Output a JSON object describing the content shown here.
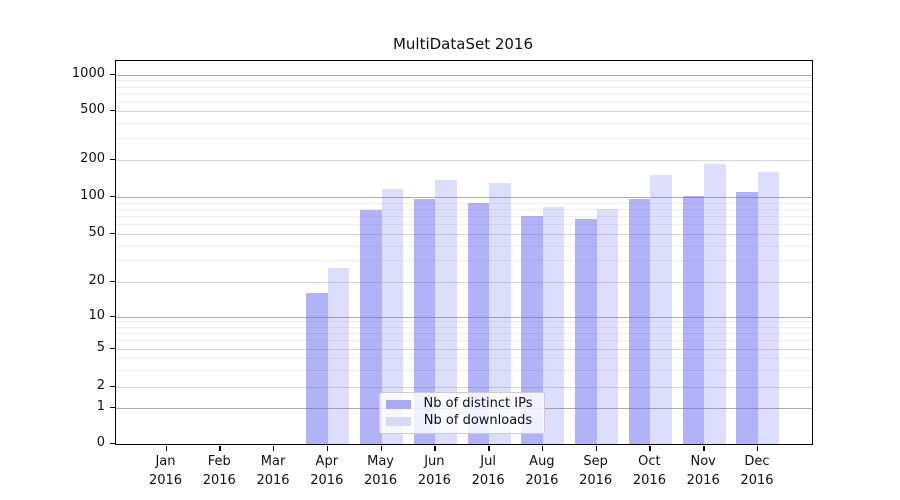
{
  "chart_data": {
    "type": "bar",
    "title": "MultiDataSet 2016",
    "categories": [
      "Jan",
      "Feb",
      "Mar",
      "Apr",
      "May",
      "Jun",
      "Jul",
      "Aug",
      "Sep",
      "Oct",
      "Nov",
      "Dec"
    ],
    "category_year": "2016",
    "series": [
      {
        "name": "Nb of distinct IPs",
        "color": "#6666f2",
        "opacity": 0.5,
        "legend_color": "#a9a9f8",
        "values": [
          0,
          0,
          0,
          16,
          78,
          96,
          90,
          70,
          66,
          96,
          101,
          110
        ]
      },
      {
        "name": "Nb of downloads",
        "color": "#6666f2",
        "opacity": 0.22,
        "legend_color": "#d9d9fb",
        "values": [
          0,
          0,
          0,
          26,
          115,
          137,
          130,
          83,
          80,
          150,
          185,
          160
        ]
      }
    ],
    "yaxis": {
      "ticks": [
        0,
        1,
        2,
        5,
        10,
        20,
        50,
        100,
        200,
        500,
        1000
      ],
      "scale": "log-like",
      "top_value": 1300
    },
    "grid": true,
    "legend_position": "bottom-center"
  }
}
